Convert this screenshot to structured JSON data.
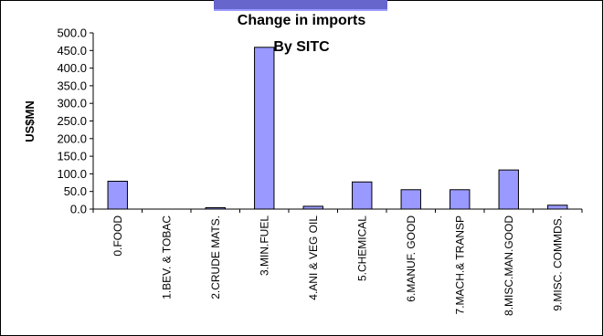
{
  "chart_data": {
    "type": "bar",
    "title": "Change in imports",
    "subtitle": "By SITC",
    "ylabel": "US$MN",
    "xlabel": "",
    "categories": [
      "0.FOOD",
      "1.BEV. & TOBAC",
      "2.CRUDE MATS.",
      "3.MIN.FUEL",
      "4.ANI & VEG OIL",
      "5.CHEMICAL",
      "6.MANUF. GOOD",
      "7.MACH.& TRANSP",
      "8.MISC.MAN.GOOD",
      "9.MISC. COMMDS."
    ],
    "values": [
      79,
      0,
      4,
      459,
      8,
      77,
      55,
      55,
      111,
      11
    ],
    "ylim": [
      0,
      500
    ],
    "yticks": [
      "0.0",
      "50.0",
      "100.0",
      "150.0",
      "200.0",
      "250.0",
      "300.0",
      "350.0",
      "400.0",
      "450.0",
      "500.0"
    ],
    "grid": false,
    "legend": "none",
    "bar_color": "#9999ff",
    "bar_border_color": "#000000"
  },
  "colors": {
    "header_bar": "#6666cc",
    "header_bar_accent": "#9999ff"
  }
}
